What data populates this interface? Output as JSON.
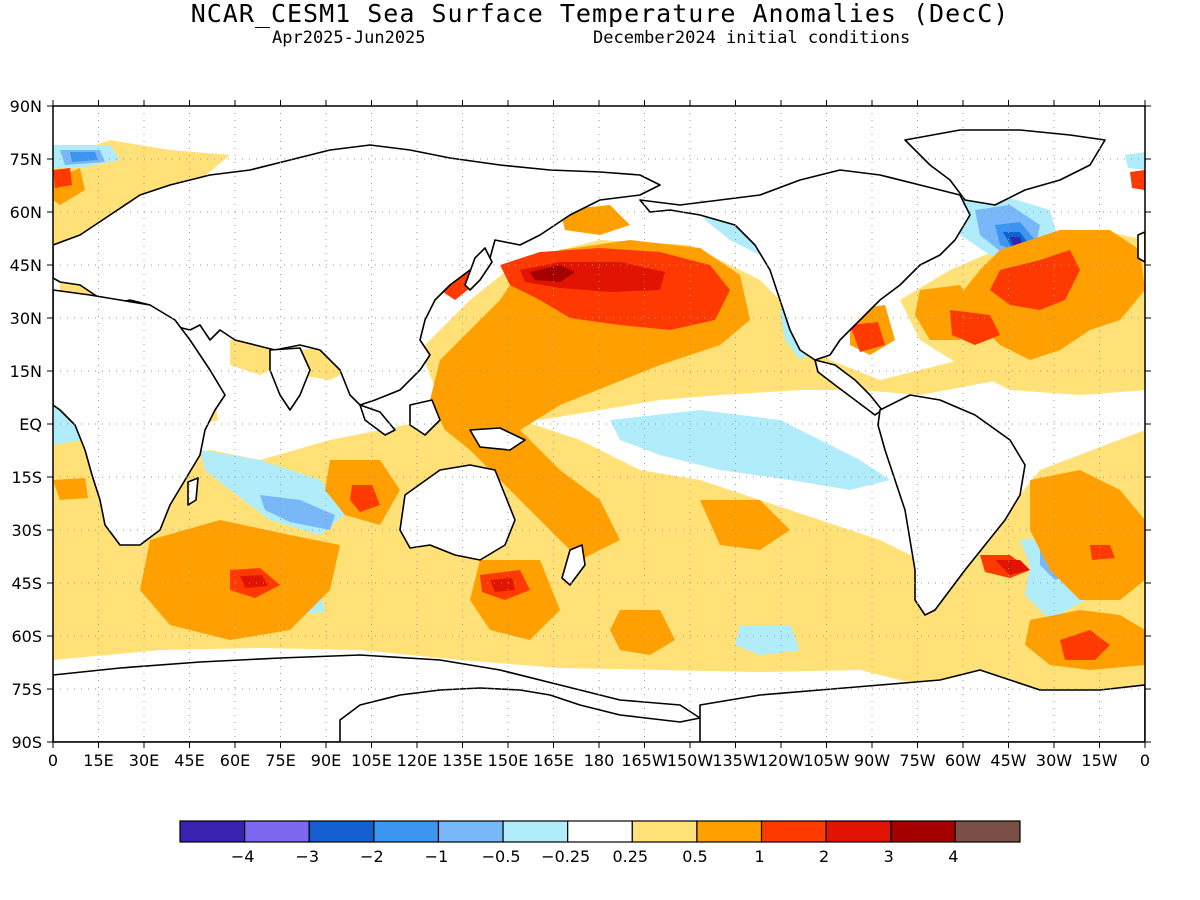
{
  "title": "NCAR_CESM1 Sea Surface Temperature Anomalies (DecC)",
  "subtitle_period": "Apr2025-Jun2025",
  "subtitle_init": "December2024 initial conditions",
  "lat_labels": [
    "90N",
    "75N",
    "60N",
    "45N",
    "30N",
    "15N",
    "EQ",
    "15S",
    "30S",
    "45S",
    "60S",
    "75S",
    "90S"
  ],
  "lon_labels": [
    "0",
    "15E",
    "30E",
    "45E",
    "60E",
    "75E",
    "90E",
    "105E",
    "120E",
    "135E",
    "150E",
    "165E",
    "180",
    "165W",
    "150W",
    "135W",
    "120W",
    "105W",
    "90W",
    "75W",
    "60W",
    "45W",
    "30W",
    "15W",
    "0"
  ],
  "colorbar": {
    "colors": [
      "#3a22b0",
      "#7b68ee",
      "#1560d0",
      "#3c96f0",
      "#78b8f8",
      "#b0ecfa",
      "#ffffff",
      "#ffe178",
      "#ffa000",
      "#ff3a00",
      "#e01400",
      "#a50000",
      "#7a4f45"
    ],
    "tick_labels": [
      "-4",
      "-3",
      "-2",
      "-1",
      "-0.5",
      "-0.25",
      "0.25",
      "0.5",
      "1",
      "2",
      "3",
      "4"
    ]
  },
  "colors": {
    "yellow": "#ffe178",
    "orange": "#ffa000",
    "red": "#ff3a00",
    "darkred": "#e01400",
    "maroon": "#a50000",
    "lightblue": "#b0ecfa",
    "paleblue": "#78b8f8",
    "blue": "#3c96f0",
    "midblue": "#1560d0",
    "violet": "#3a22b0"
  }
}
